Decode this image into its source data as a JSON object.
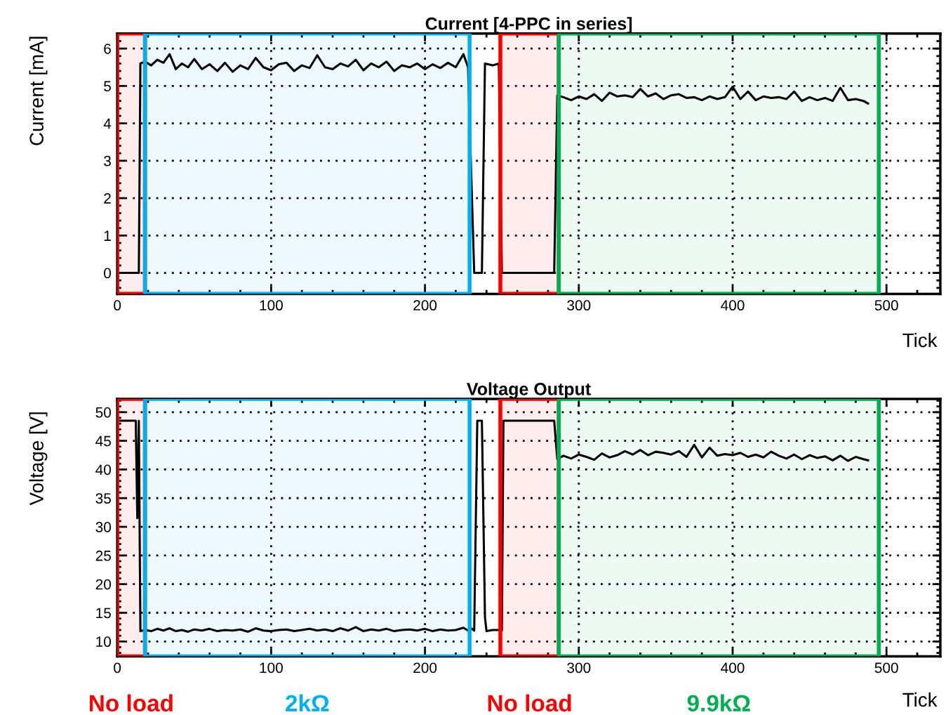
{
  "chart_data": [
    {
      "type": "line",
      "title": "Current [4-PPC in series]",
      "xlabel": "Tick",
      "ylabel": "Current [mA]",
      "xlim": [
        0,
        535
      ],
      "ylim": [
        -0.56,
        6.4
      ],
      "xticks": [
        0,
        100,
        200,
        300,
        400,
        500
      ],
      "yticks": [
        0,
        1,
        2,
        3,
        4,
        5,
        6
      ],
      "grid": true,
      "series": [
        {
          "color": "#000000",
          "x": [
            0,
            14,
            15,
            18,
            22,
            26,
            30,
            34,
            38,
            42,
            46,
            50,
            55,
            60,
            65,
            70,
            75,
            80,
            85,
            90,
            95,
            100,
            105,
            110,
            115,
            120,
            125,
            130,
            135,
            140,
            145,
            150,
            155,
            160,
            165,
            170,
            175,
            180,
            185,
            190,
            195,
            200,
            205,
            210,
            215,
            220,
            225,
            228,
            232,
            237,
            239,
            244,
            248,
            250,
            260,
            284,
            286,
            290,
            295,
            300,
            305,
            310,
            315,
            320,
            325,
            330,
            335,
            340,
            345,
            350,
            355,
            360,
            365,
            370,
            375,
            380,
            385,
            390,
            395,
            400,
            405,
            410,
            415,
            420,
            425,
            430,
            435,
            440,
            445,
            450,
            455,
            460,
            465,
            470,
            475,
            480,
            485,
            488
          ],
          "values": [
            0,
            0,
            5.6,
            5.65,
            5.55,
            5.7,
            5.62,
            5.85,
            5.45,
            5.6,
            5.5,
            5.72,
            5.45,
            5.58,
            5.4,
            5.62,
            5.38,
            5.55,
            5.45,
            5.75,
            5.5,
            5.42,
            5.58,
            5.62,
            5.4,
            5.55,
            5.48,
            5.82,
            5.5,
            5.45,
            5.6,
            5.52,
            5.7,
            5.42,
            5.6,
            5.5,
            5.65,
            5.4,
            5.55,
            5.5,
            5.6,
            5.45,
            5.58,
            5.48,
            5.62,
            5.5,
            5.85,
            5.5,
            0,
            0,
            5.6,
            5.55,
            5.6,
            0,
            0,
            0,
            4.75,
            4.7,
            4.62,
            4.72,
            4.65,
            4.78,
            4.6,
            4.82,
            4.72,
            4.75,
            4.7,
            4.92,
            4.72,
            4.8,
            4.65,
            4.75,
            4.78,
            4.68,
            4.7,
            4.62,
            4.72,
            4.65,
            4.7,
            4.98,
            4.65,
            4.85,
            4.62,
            4.72,
            4.68,
            4.7,
            4.65,
            4.85,
            4.6,
            4.7,
            4.62,
            4.68,
            4.6,
            4.95,
            4.62,
            4.65,
            4.6,
            4.53
          ]
        }
      ],
      "bands": [
        {
          "axis": "x",
          "from": 0,
          "to": 18,
          "color": "#ff0000"
        },
        {
          "axis": "x",
          "from": 18,
          "to": 229,
          "color": "#00b0f0"
        },
        {
          "axis": "x",
          "from": 249,
          "to": 287,
          "color": "#ff0000"
        },
        {
          "axis": "x",
          "from": 287,
          "to": 495,
          "color": "#00b050"
        }
      ]
    },
    {
      "type": "line",
      "title": "Voltage Output",
      "xlabel": "Tick",
      "ylabel": "Voltage [V]",
      "xlim": [
        0,
        535
      ],
      "ylim": [
        7.4,
        52.3
      ],
      "xticks": [
        0,
        100,
        200,
        300,
        400,
        500
      ],
      "yticks": [
        10,
        15,
        20,
        25,
        30,
        35,
        40,
        45,
        50
      ],
      "grid": true,
      "series": [
        {
          "color": "#000000",
          "x": [
            0,
            12,
            13,
            14,
            15,
            18,
            22,
            26,
            30,
            34,
            38,
            42,
            46,
            50,
            55,
            60,
            65,
            70,
            75,
            80,
            85,
            90,
            95,
            100,
            105,
            110,
            115,
            120,
            125,
            130,
            135,
            140,
            145,
            150,
            155,
            160,
            165,
            170,
            175,
            180,
            185,
            190,
            195,
            200,
            205,
            210,
            215,
            220,
            225,
            228,
            230,
            232,
            234,
            237,
            239,
            240,
            244,
            248,
            250,
            251,
            284,
            286,
            290,
            295,
            300,
            305,
            310,
            315,
            320,
            325,
            330,
            335,
            340,
            345,
            350,
            355,
            360,
            365,
            370,
            375,
            380,
            385,
            390,
            395,
            400,
            405,
            410,
            415,
            420,
            425,
            430,
            435,
            440,
            445,
            450,
            455,
            460,
            465,
            470,
            475,
            480,
            485,
            488
          ],
          "values": [
            48.5,
            48.5,
            31.5,
            48.5,
            11.8,
            12,
            11.8,
            12.2,
            11.9,
            12.3,
            11.8,
            12,
            11.7,
            12.1,
            11.9,
            12.2,
            11.8,
            12,
            11.9,
            12.1,
            11.7,
            12.3,
            11.9,
            11.8,
            12,
            12.1,
            11.8,
            12,
            12.2,
            11.9,
            12.1,
            11.8,
            12.3,
            11.9,
            12.5,
            11.8,
            12.1,
            11.9,
            12.2,
            11.8,
            12,
            12.1,
            11.9,
            12.2,
            11.8,
            12.1,
            11.9,
            12,
            12.4,
            11.9,
            12.3,
            11.9,
            48.5,
            48.5,
            14.2,
            11.8,
            12,
            12,
            11.9,
            48.5,
            48.5,
            41.8,
            42.4,
            41.9,
            42.6,
            42.2,
            41.7,
            42.8,
            42.1,
            42.5,
            43.2,
            42.6,
            43.4,
            42.5,
            43.1,
            42.9,
            42.6,
            43.2,
            42.2,
            44.3,
            42.1,
            43.8,
            42.4,
            42.7,
            42.5,
            42.9,
            42.2,
            42.6,
            42.1,
            43.1,
            42.4,
            41.9,
            42.6,
            41.8,
            42.5,
            42,
            42.3,
            41.6,
            42.4,
            41.5,
            42.2,
            41.8,
            41.6
          ]
        }
      ],
      "bands": [
        {
          "axis": "x",
          "from": 0,
          "to": 18,
          "color": "#ff0000",
          "label": "No load"
        },
        {
          "axis": "x",
          "from": 18,
          "to": 229,
          "color": "#00b0f0",
          "label": "2kΩ"
        },
        {
          "axis": "x",
          "from": 249,
          "to": 287,
          "color": "#ff0000",
          "label": "No load"
        },
        {
          "axis": "x",
          "from": 287,
          "to": 495,
          "color": "#00b050",
          "label": "9.9kΩ"
        }
      ]
    }
  ]
}
